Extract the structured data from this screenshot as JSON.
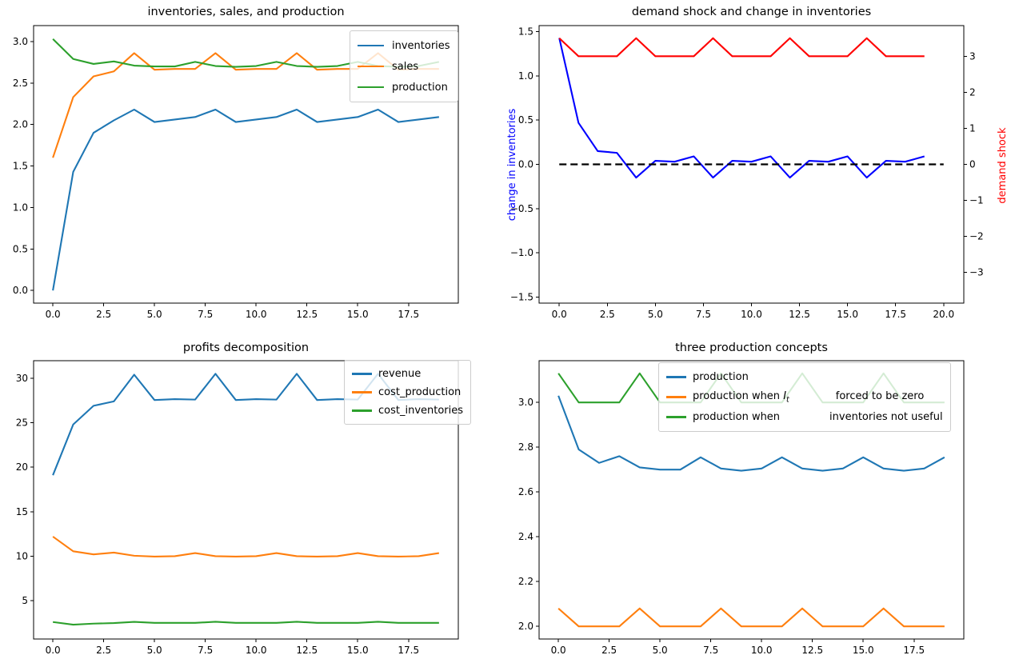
{
  "figure": {
    "background": "#ffffff"
  },
  "chart_data": [
    {
      "id": "inventories-sales-production",
      "type": "line",
      "title": "inventories, sales, and production",
      "x": [
        0,
        1,
        2,
        3,
        4,
        5,
        6,
        7,
        8,
        9,
        10,
        11,
        12,
        13,
        14,
        15,
        16,
        17,
        18,
        19
      ],
      "xlim": [
        -0.95,
        19.95
      ],
      "ylim": [
        -0.152,
        3.192
      ],
      "grid": false,
      "xticks": {
        "values": [
          0,
          2.5,
          5,
          7.5,
          10,
          12.5,
          15,
          17.5
        ],
        "labels": [
          "0.0",
          "2.5",
          "5.0",
          "7.5",
          "10.0",
          "12.5",
          "15.0",
          "17.5"
        ]
      },
      "yticks": {
        "values": [
          0,
          0.5,
          1,
          1.5,
          2,
          2.5,
          3
        ],
        "labels": [
          "0.0",
          "0.5",
          "1.0",
          "1.5",
          "2.0",
          "2.5",
          "3.0"
        ]
      },
      "legend": {
        "position": "upper right",
        "entries": [
          {
            "label": "inventories"
          },
          {
            "label": "sales"
          },
          {
            "label": "production"
          }
        ]
      },
      "series": [
        {
          "name": "inventories",
          "color": "#1f77b4",
          "values": [
            0.0,
            1.43,
            1.9,
            2.05,
            2.18,
            2.03,
            2.06,
            2.09,
            2.18,
            2.03,
            2.06,
            2.09,
            2.18,
            2.03,
            2.06,
            2.09,
            2.18,
            2.03,
            2.06,
            2.09
          ]
        },
        {
          "name": "sales",
          "color": "#ff7f0e",
          "values": [
            1.6,
            2.33,
            2.58,
            2.64,
            2.86,
            2.66,
            2.67,
            2.67,
            2.86,
            2.66,
            2.67,
            2.67,
            2.86,
            2.66,
            2.67,
            2.67,
            2.86,
            2.66,
            2.67,
            2.67
          ]
        },
        {
          "name": "production",
          "color": "#2ca02c",
          "values": [
            3.03,
            2.79,
            2.73,
            2.76,
            2.71,
            2.7,
            2.7,
            2.755,
            2.705,
            2.695,
            2.705,
            2.755,
            2.705,
            2.695,
            2.705,
            2.755,
            2.705,
            2.695,
            2.705,
            2.755
          ]
        }
      ]
    },
    {
      "id": "demand-shock-change-in-inventories",
      "type": "line",
      "title": "demand shock and change in inventories",
      "x": [
        0,
        1,
        2,
        3,
        4,
        5,
        6,
        7,
        8,
        9,
        10,
        11,
        12,
        13,
        14,
        15,
        16,
        17,
        18,
        19
      ],
      "xlim": [
        -1.05,
        21.05
      ],
      "ylim": [
        -1.57,
        1.57
      ],
      "y2lim": [
        -3.85,
        3.85
      ],
      "grid": false,
      "ylabel_left": "change in inventories",
      "ylabel_left_color": "#0000ff",
      "ylabel_right": "demand shock",
      "ylabel_right_color": "#ff0000",
      "xticks": {
        "values": [
          0,
          2.5,
          5,
          7.5,
          10,
          12.5,
          15,
          17.5,
          20
        ],
        "labels": [
          "0.0",
          "2.5",
          "5.0",
          "7.5",
          "10.0",
          "12.5",
          "15.0",
          "17.5",
          "20.0"
        ]
      },
      "yticks": {
        "values": [
          1.5,
          1.0,
          0.5,
          0,
          -0.5,
          -1.0,
          -1.5
        ],
        "labels": [
          "1.5",
          "1.0",
          "0.5",
          "0.0",
          "−0.5",
          "−1.0",
          "−1.5"
        ]
      },
      "y2ticks": {
        "values": [
          3,
          2,
          1,
          0,
          -1,
          -2,
          -3
        ],
        "labels": [
          "3",
          "2",
          "1",
          "0",
          "−1",
          "−2",
          "−3"
        ]
      },
      "series": [
        {
          "name": "change in inventories",
          "color": "#0000ff",
          "values": [
            1.43,
            0.47,
            0.15,
            0.13,
            -0.15,
            0.04,
            0.03,
            0.09,
            -0.15,
            0.04,
            0.03,
            0.09,
            -0.15,
            0.04,
            0.03,
            0.09,
            -0.15,
            0.04,
            0.03,
            0.09
          ]
        },
        {
          "name": "demand shock",
          "color": "#ff0000",
          "axis": "y2",
          "values": [
            3.5,
            3,
            3,
            3,
            3.5,
            3,
            3,
            3,
            3.5,
            3,
            3,
            3,
            3.5,
            3,
            3,
            3,
            3.5,
            3,
            3,
            3
          ]
        },
        {
          "name": "zero line",
          "color": "#000000",
          "style": "dashed",
          "x": [
            0,
            20
          ],
          "values": [
            0,
            0
          ]
        }
      ]
    },
    {
      "id": "profits-decomposition",
      "type": "line",
      "title": "profits decomposition",
      "x": [
        0,
        1,
        2,
        3,
        4,
        5,
        6,
        7,
        8,
        9,
        10,
        11,
        12,
        13,
        14,
        15,
        16,
        17,
        18,
        19
      ],
      "xlim": [
        -0.95,
        19.95
      ],
      "ylim": [
        0.69,
        31.97
      ],
      "grid": false,
      "xticks": {
        "values": [
          0,
          2.5,
          5,
          7.5,
          10,
          12.5,
          15,
          17.5
        ],
        "labels": [
          "0.0",
          "2.5",
          "5.0",
          "7.5",
          "10.0",
          "12.5",
          "15.0",
          "17.5"
        ]
      },
      "yticks": {
        "values": [
          5,
          10,
          15,
          20,
          25,
          30
        ],
        "labels": [
          "5",
          "10",
          "15",
          "20",
          "25",
          "30"
        ]
      },
      "legend": {
        "position": "upper right",
        "entries": [
          {
            "label": "revenue"
          },
          {
            "label": "cost_production"
          },
          {
            "label": "cost_inventories"
          }
        ]
      },
      "series": [
        {
          "name": "revenue",
          "color": "#1f77b4",
          "values": [
            19.1,
            24.8,
            26.9,
            27.4,
            30.4,
            27.55,
            27.65,
            27.6,
            30.5,
            27.55,
            27.65,
            27.6,
            30.5,
            27.55,
            27.65,
            27.6,
            30.5,
            27.55,
            27.65,
            27.6
          ]
        },
        {
          "name": "cost_production",
          "color": "#ff7f0e",
          "values": [
            12.2,
            10.55,
            10.2,
            10.4,
            10.05,
            9.95,
            10.0,
            10.35,
            10.0,
            9.95,
            10.0,
            10.35,
            10.0,
            9.95,
            10.0,
            10.35,
            10.0,
            9.95,
            10.0,
            10.35
          ]
        },
        {
          "name": "cost_inventories",
          "color": "#2ca02c",
          "values": [
            2.6,
            2.3,
            2.42,
            2.48,
            2.62,
            2.5,
            2.5,
            2.5,
            2.63,
            2.5,
            2.5,
            2.5,
            2.63,
            2.5,
            2.5,
            2.5,
            2.63,
            2.5,
            2.5,
            2.5
          ]
        }
      ]
    },
    {
      "id": "three-production-concepts",
      "type": "line",
      "title": "three production concepts",
      "x": [
        0,
        1,
        2,
        3,
        4,
        5,
        6,
        7,
        8,
        9,
        10,
        11,
        12,
        13,
        14,
        15,
        16,
        17,
        18,
        19
      ],
      "xlim": [
        -0.95,
        19.95
      ],
      "ylim": [
        1.9435,
        3.1865
      ],
      "grid": false,
      "xticks": {
        "values": [
          0,
          2.5,
          5,
          7.5,
          10,
          12.5,
          15,
          17.5
        ],
        "labels": [
          "0.0",
          "2.5",
          "5.0",
          "7.5",
          "10.0",
          "12.5",
          "15.0",
          "17.5"
        ]
      },
      "yticks": {
        "values": [
          2.0,
          2.2,
          2.4,
          2.6,
          2.8,
          3.0
        ],
        "labels": [
          "2.0",
          "2.2",
          "2.4",
          "2.6",
          "2.8",
          "3.0"
        ]
      },
      "legend": {
        "position": "upper center",
        "entries": [
          {
            "label": "production"
          },
          {
            "label_pre": "production when ",
            "math_base": "I",
            "math_sub": "t",
            "label_post": "forced to be zero"
          },
          {
            "label_pre": "production when",
            "label_post": "inventories not useful"
          }
        ]
      },
      "series": [
        {
          "name": "production",
          "color": "#1f77b4",
          "values": [
            3.03,
            2.79,
            2.73,
            2.76,
            2.71,
            2.7,
            2.7,
            2.755,
            2.705,
            2.695,
            2.705,
            2.755,
            2.705,
            2.695,
            2.705,
            2.755,
            2.705,
            2.695,
            2.705,
            2.755
          ]
        },
        {
          "name": "production when I_t forced to be zero",
          "color": "#ff7f0e",
          "values": [
            2.08,
            2.0,
            2.0,
            2.0,
            2.08,
            2.0,
            2.0,
            2.0,
            2.08,
            2.0,
            2.0,
            2.0,
            2.08,
            2.0,
            2.0,
            2.0,
            2.08,
            2.0,
            2.0,
            2.0
          ]
        },
        {
          "name": "production when inventories not useful",
          "color": "#2ca02c",
          "values": [
            3.13,
            3.0,
            3.0,
            3.0,
            3.13,
            3.0,
            3.0,
            3.0,
            3.13,
            3.0,
            3.0,
            3.0,
            3.13,
            3.0,
            3.0,
            3.0,
            3.13,
            3.0,
            3.0,
            3.0
          ]
        }
      ]
    }
  ]
}
